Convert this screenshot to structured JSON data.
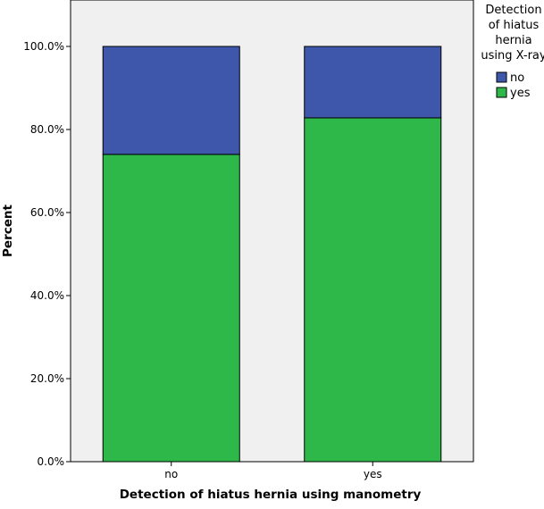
{
  "chart_data": {
    "type": "bar",
    "stacked": true,
    "categories": [
      "no",
      "yes"
    ],
    "series": [
      {
        "name": "yes",
        "color": "#2eb84a",
        "values": [
          74.0,
          82.8
        ]
      },
      {
        "name": "no",
        "color": "#3e57ab",
        "values": [
          26.0,
          17.2
        ]
      }
    ],
    "xlabel": "Detection of hiatus hernia using manometry",
    "ylabel": "Percent",
    "ylim": [
      0,
      100
    ],
    "yticks": [
      "0.0%",
      "20.0%",
      "40.0%",
      "60.0%",
      "80.0%",
      "100.0%"
    ],
    "ytick_values": [
      0,
      20,
      40,
      60,
      80,
      100
    ],
    "legend": {
      "title_lines": [
        "Detection",
        "of hiatus",
        "hernia",
        "using X-ray"
      ],
      "items": [
        {
          "label": "no",
          "color": "#3e57ab"
        },
        {
          "label": "yes",
          "color": "#2eb84a"
        }
      ],
      "position": "top-right"
    },
    "background": "#f0f0f0",
    "grid": false
  }
}
